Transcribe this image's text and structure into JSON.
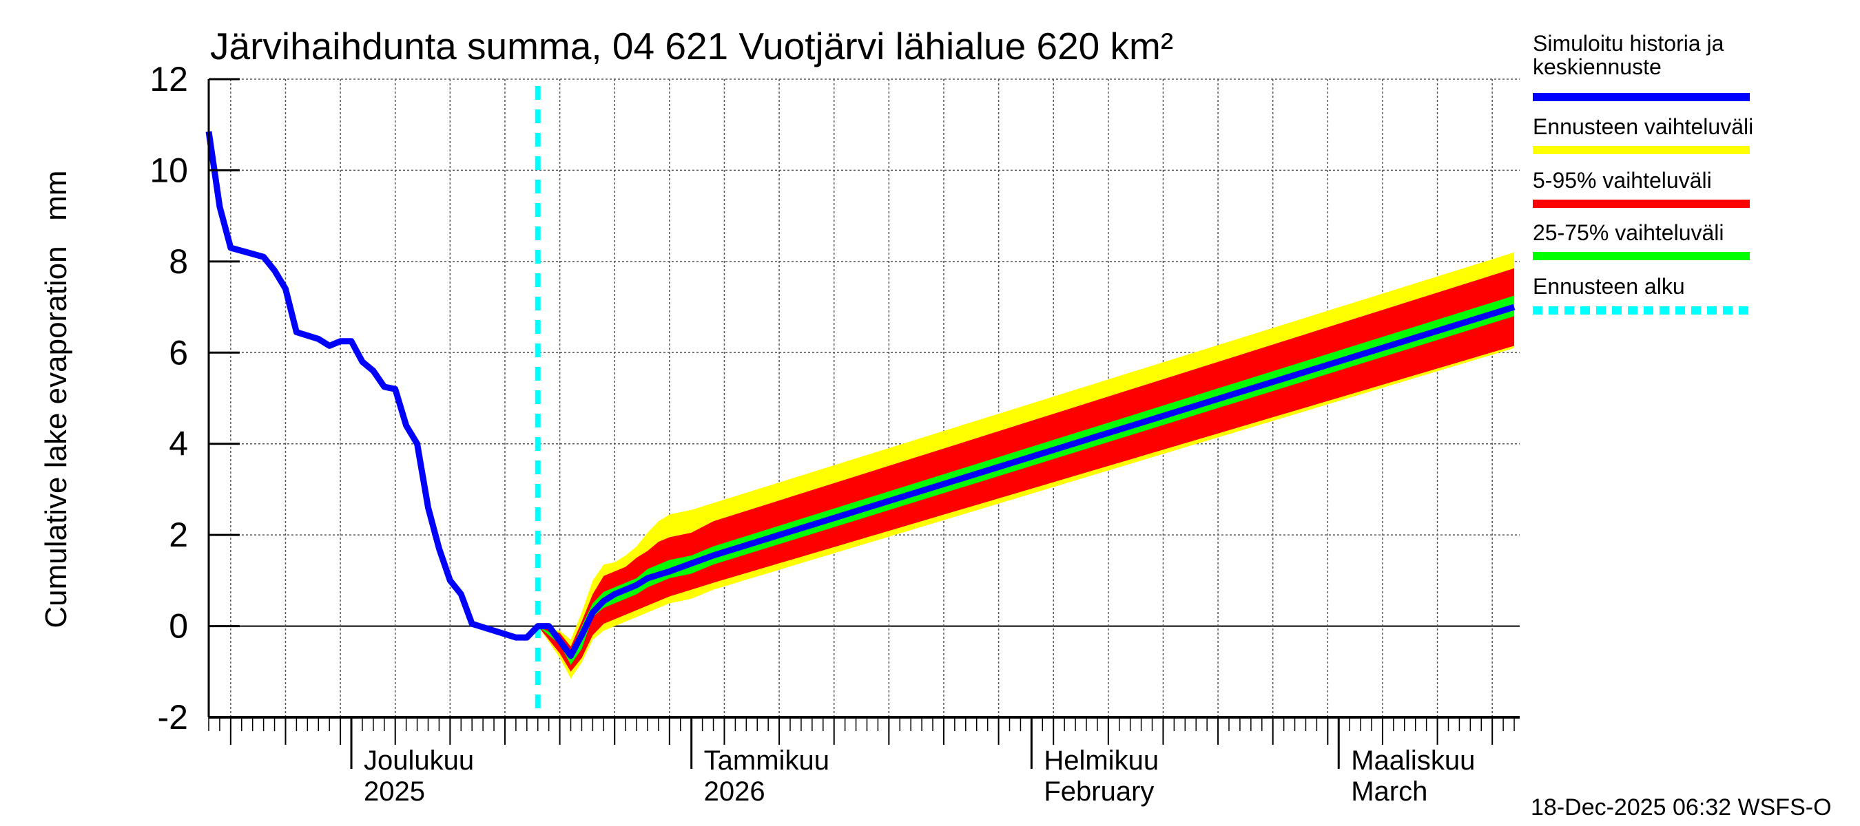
{
  "chart_data": {
    "type": "area",
    "title": "Järvihaihdunta summa, 04 621 Vuotjärvi lähialue 620 km²",
    "ylabel": "Cumulative lake evaporation   mm",
    "xlabel": "",
    "ylim": [
      -2,
      12
    ],
    "yticks": [
      -2,
      0,
      2,
      4,
      6,
      8,
      10,
      12
    ],
    "xlim": [
      "2025-11-18",
      "2026-03-17"
    ],
    "grid": true,
    "legend_placement": "right",
    "month_labels": [
      {
        "date": "2025-12-01",
        "line1": "Joulukuu",
        "line2": "2025"
      },
      {
        "date": "2026-01-01",
        "line1": "Tammikuu",
        "line2": "2026"
      },
      {
        "date": "2026-02-01",
        "line1": "Helmikuu",
        "line2": "February"
      },
      {
        "date": "2026-03-01",
        "line1": "Maaliskuu",
        "line2": "March"
      }
    ],
    "forecast_start": "2025-12-18",
    "legend": [
      {
        "label": "Simuloitu historia ja",
        "label2": "keskiennuste",
        "color": "#0000ff",
        "style": "solid"
      },
      {
        "label": "Ennusteen vaihteluväli",
        "color": "#ffff00",
        "style": "solid"
      },
      {
        "label": "5-95% vaihteluväli",
        "color": "#ff0000",
        "style": "solid"
      },
      {
        "label": "25-75% vaihteluväli",
        "color": "#00ff00",
        "style": "solid"
      },
      {
        "label": "Ennusteen alku",
        "color": "#00ffff",
        "style": "dashed"
      }
    ],
    "series": [
      {
        "name": "Simuloitu historia ja keskiennuste",
        "color": "#0000ff",
        "x": [
          "2025-11-18",
          "2025-11-19",
          "2025-11-20",
          "2025-11-23",
          "2025-11-24",
          "2025-11-25",
          "2025-11-26",
          "2025-11-28",
          "2025-11-29",
          "2025-11-30",
          "2025-12-01",
          "2025-12-02",
          "2025-12-03",
          "2025-12-04",
          "2025-12-05",
          "2025-12-06",
          "2025-12-07",
          "2025-12-08",
          "2025-12-09",
          "2025-12-10",
          "2025-12-11",
          "2025-12-12",
          "2025-12-16",
          "2025-12-17",
          "2025-12-18",
          "2025-12-19",
          "2025-12-21",
          "2025-12-22",
          "2025-12-23",
          "2025-12-24",
          "2025-12-25",
          "2025-12-26",
          "2025-12-27",
          "2025-12-28",
          "2025-12-30",
          "2026-01-03",
          "2026-03-17"
        ],
        "y": [
          10.85,
          9.2,
          8.3,
          8.1,
          7.8,
          7.4,
          6.45,
          6.3,
          6.15,
          6.25,
          6.25,
          5.8,
          5.6,
          5.25,
          5.2,
          4.4,
          4.0,
          2.6,
          1.7,
          1.0,
          0.7,
          0.05,
          -0.25,
          -0.25,
          0.0,
          0.0,
          -0.65,
          -0.2,
          0.3,
          0.55,
          0.7,
          0.8,
          0.9,
          1.05,
          1.2,
          1.55,
          7.0
        ]
      }
    ],
    "bands": {
      "x": [
        "2025-12-18",
        "2025-12-20",
        "2025-12-21",
        "2025-12-22",
        "2025-12-23",
        "2025-12-24",
        "2025-12-25",
        "2025-12-26",
        "2025-12-27",
        "2025-12-28",
        "2025-12-29",
        "2025-12-30",
        "2026-01-01",
        "2026-01-03",
        "2026-03-17"
      ],
      "ennuste_upper": [
        0,
        -0.1,
        -0.3,
        0.3,
        1.0,
        1.35,
        1.4,
        1.55,
        1.75,
        2.05,
        2.3,
        2.45,
        2.55,
        2.7,
        8.2
      ],
      "p95": [
        0,
        -0.15,
        -0.45,
        0.1,
        0.7,
        1.1,
        1.2,
        1.3,
        1.5,
        1.65,
        1.85,
        1.95,
        2.05,
        2.3,
        7.85
      ],
      "p75": [
        0,
        -0.25,
        -0.55,
        0.0,
        0.5,
        0.75,
        0.85,
        0.95,
        1.05,
        1.25,
        1.35,
        1.45,
        1.55,
        1.75,
        7.25
      ],
      "p25": [
        0,
        -0.4,
        -0.85,
        -0.5,
        0.2,
        0.4,
        0.5,
        0.6,
        0.7,
        0.85,
        0.95,
        1.05,
        1.15,
        1.35,
        6.8
      ],
      "p5": [
        0,
        -0.6,
        -1.0,
        -0.7,
        -0.2,
        0.05,
        0.15,
        0.25,
        0.35,
        0.45,
        0.55,
        0.65,
        0.8,
        0.95,
        6.15
      ],
      "ennuste_lower": [
        0,
        -0.7,
        -1.15,
        -0.8,
        -0.3,
        -0.1,
        0.0,
        0.1,
        0.2,
        0.3,
        0.4,
        0.5,
        0.6,
        0.8,
        6.1
      ]
    }
  },
  "footer": "18-Dec-2025 06:32 WSFS-O"
}
